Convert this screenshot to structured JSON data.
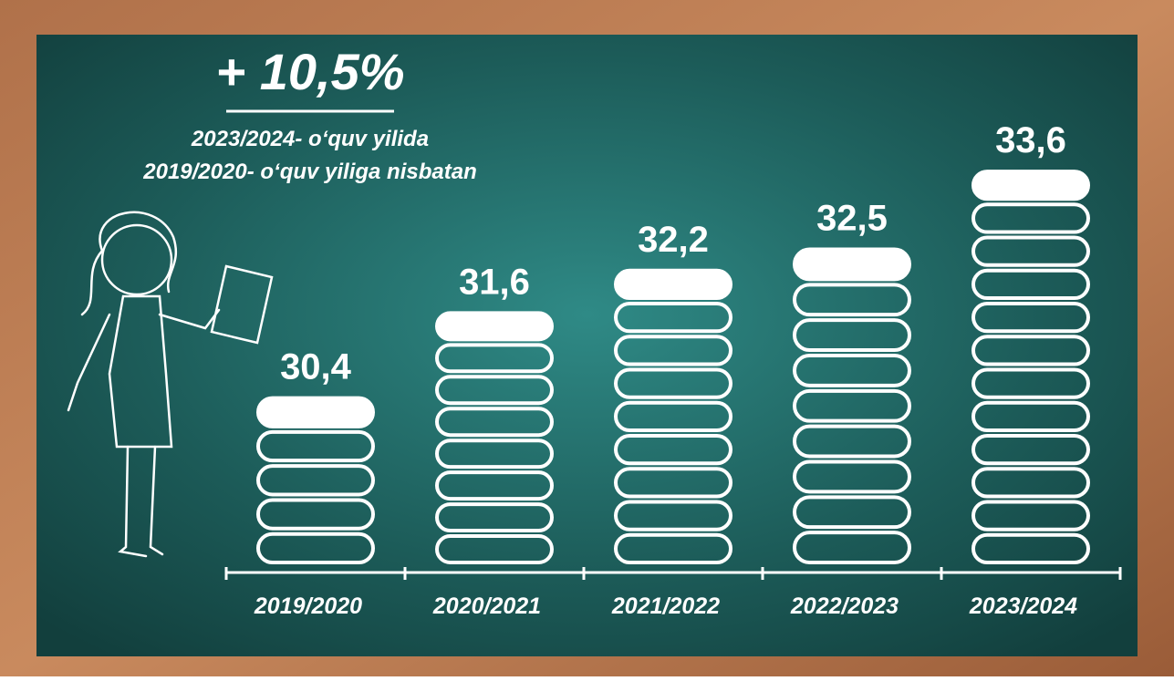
{
  "chart_data": {
    "type": "bar",
    "title": "+ 10,5%",
    "subtitle": [
      "2023/2024- o‘quv yilida",
      "2019/2020- o‘quv yiliga nisbatan"
    ],
    "categories": [
      "2019/2020",
      "2020/2021",
      "2021/2022",
      "2022/2023",
      "2023/2024"
    ],
    "values": [
      30.4,
      31.6,
      32.2,
      32.5,
      33.6
    ],
    "value_labels": [
      "30,4",
      "31,6",
      "32,2",
      "32,5",
      "33,6"
    ],
    "color": "#ffffff",
    "ylim": [
      28,
      34
    ]
  }
}
